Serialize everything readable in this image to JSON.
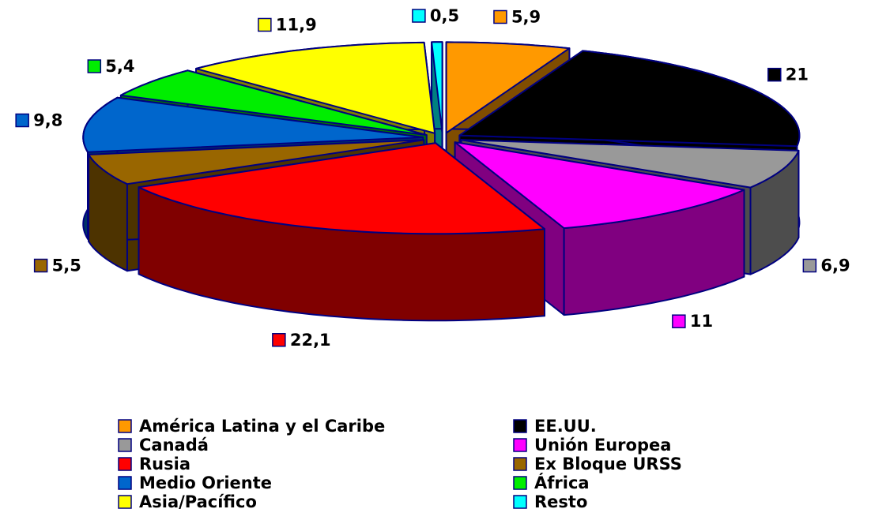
{
  "chart_data": {
    "type": "pie",
    "categories": [
      "América Latina y el Caribe",
      "EE.UU.",
      "Canadá",
      "Unión Europea",
      "Rusia",
      "Ex Bloque URSS",
      "Medio Oriente",
      "África",
      "Asia/Pacífico",
      "Resto"
    ],
    "values": [
      5.9,
      21,
      6.9,
      11,
      22.1,
      5.5,
      9.8,
      5.4,
      11.9,
      0.5
    ],
    "value_labels": [
      "5,9",
      "21",
      "6,9",
      "11",
      "22,1",
      "5,5",
      "9,8",
      "5,4",
      "11,9",
      "0,5"
    ],
    "colors": [
      "#FF9900",
      "#000000",
      "#999999",
      "#FF00FF",
      "#FF0000",
      "#996600",
      "#0066CC",
      "#00EE00",
      "#FFFF00",
      "#00FFFF"
    ]
  }
}
